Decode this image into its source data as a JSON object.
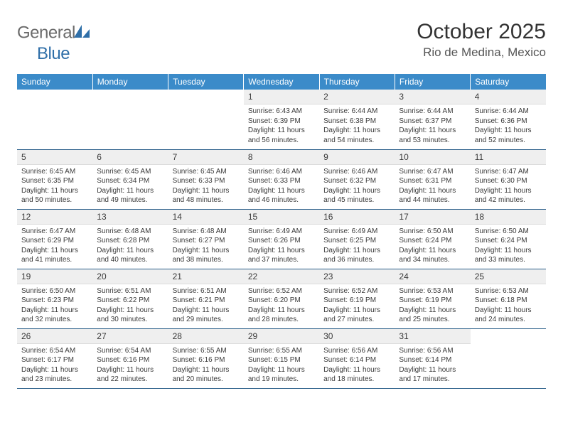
{
  "logo": {
    "word1": "General",
    "word2": "Blue"
  },
  "title": {
    "month": "October 2025",
    "location": "Rio de Medina, Mexico"
  },
  "colors": {
    "header_bg": "#3b8bc9",
    "header_text": "#ffffff",
    "daynum_bg": "#efefef",
    "row_border": "#2b5f8a",
    "logo_gray": "#6b6b6b",
    "logo_blue": "#2f6fa8",
    "body_text": "#3a3a3a",
    "page_bg": "#ffffff"
  },
  "typography": {
    "title_fontsize": 30,
    "location_fontsize": 17,
    "dayhead_fontsize": 12,
    "daynum_fontsize": 12,
    "body_fontsize": 10
  },
  "weekdays": [
    "Sunday",
    "Monday",
    "Tuesday",
    "Wednesday",
    "Thursday",
    "Friday",
    "Saturday"
  ],
  "weeks": [
    [
      {
        "n": "",
        "sr": "",
        "ss": "",
        "dl": ""
      },
      {
        "n": "",
        "sr": "",
        "ss": "",
        "dl": ""
      },
      {
        "n": "",
        "sr": "",
        "ss": "",
        "dl": ""
      },
      {
        "n": "1",
        "sr": "Sunrise: 6:43 AM",
        "ss": "Sunset: 6:39 PM",
        "dl": "Daylight: 11 hours and 56 minutes."
      },
      {
        "n": "2",
        "sr": "Sunrise: 6:44 AM",
        "ss": "Sunset: 6:38 PM",
        "dl": "Daylight: 11 hours and 54 minutes."
      },
      {
        "n": "3",
        "sr": "Sunrise: 6:44 AM",
        "ss": "Sunset: 6:37 PM",
        "dl": "Daylight: 11 hours and 53 minutes."
      },
      {
        "n": "4",
        "sr": "Sunrise: 6:44 AM",
        "ss": "Sunset: 6:36 PM",
        "dl": "Daylight: 11 hours and 52 minutes."
      }
    ],
    [
      {
        "n": "5",
        "sr": "Sunrise: 6:45 AM",
        "ss": "Sunset: 6:35 PM",
        "dl": "Daylight: 11 hours and 50 minutes."
      },
      {
        "n": "6",
        "sr": "Sunrise: 6:45 AM",
        "ss": "Sunset: 6:34 PM",
        "dl": "Daylight: 11 hours and 49 minutes."
      },
      {
        "n": "7",
        "sr": "Sunrise: 6:45 AM",
        "ss": "Sunset: 6:33 PM",
        "dl": "Daylight: 11 hours and 48 minutes."
      },
      {
        "n": "8",
        "sr": "Sunrise: 6:46 AM",
        "ss": "Sunset: 6:33 PM",
        "dl": "Daylight: 11 hours and 46 minutes."
      },
      {
        "n": "9",
        "sr": "Sunrise: 6:46 AM",
        "ss": "Sunset: 6:32 PM",
        "dl": "Daylight: 11 hours and 45 minutes."
      },
      {
        "n": "10",
        "sr": "Sunrise: 6:47 AM",
        "ss": "Sunset: 6:31 PM",
        "dl": "Daylight: 11 hours and 44 minutes."
      },
      {
        "n": "11",
        "sr": "Sunrise: 6:47 AM",
        "ss": "Sunset: 6:30 PM",
        "dl": "Daylight: 11 hours and 42 minutes."
      }
    ],
    [
      {
        "n": "12",
        "sr": "Sunrise: 6:47 AM",
        "ss": "Sunset: 6:29 PM",
        "dl": "Daylight: 11 hours and 41 minutes."
      },
      {
        "n": "13",
        "sr": "Sunrise: 6:48 AM",
        "ss": "Sunset: 6:28 PM",
        "dl": "Daylight: 11 hours and 40 minutes."
      },
      {
        "n": "14",
        "sr": "Sunrise: 6:48 AM",
        "ss": "Sunset: 6:27 PM",
        "dl": "Daylight: 11 hours and 38 minutes."
      },
      {
        "n": "15",
        "sr": "Sunrise: 6:49 AM",
        "ss": "Sunset: 6:26 PM",
        "dl": "Daylight: 11 hours and 37 minutes."
      },
      {
        "n": "16",
        "sr": "Sunrise: 6:49 AM",
        "ss": "Sunset: 6:25 PM",
        "dl": "Daylight: 11 hours and 36 minutes."
      },
      {
        "n": "17",
        "sr": "Sunrise: 6:50 AM",
        "ss": "Sunset: 6:24 PM",
        "dl": "Daylight: 11 hours and 34 minutes."
      },
      {
        "n": "18",
        "sr": "Sunrise: 6:50 AM",
        "ss": "Sunset: 6:24 PM",
        "dl": "Daylight: 11 hours and 33 minutes."
      }
    ],
    [
      {
        "n": "19",
        "sr": "Sunrise: 6:50 AM",
        "ss": "Sunset: 6:23 PM",
        "dl": "Daylight: 11 hours and 32 minutes."
      },
      {
        "n": "20",
        "sr": "Sunrise: 6:51 AM",
        "ss": "Sunset: 6:22 PM",
        "dl": "Daylight: 11 hours and 30 minutes."
      },
      {
        "n": "21",
        "sr": "Sunrise: 6:51 AM",
        "ss": "Sunset: 6:21 PM",
        "dl": "Daylight: 11 hours and 29 minutes."
      },
      {
        "n": "22",
        "sr": "Sunrise: 6:52 AM",
        "ss": "Sunset: 6:20 PM",
        "dl": "Daylight: 11 hours and 28 minutes."
      },
      {
        "n": "23",
        "sr": "Sunrise: 6:52 AM",
        "ss": "Sunset: 6:19 PM",
        "dl": "Daylight: 11 hours and 27 minutes."
      },
      {
        "n": "24",
        "sr": "Sunrise: 6:53 AM",
        "ss": "Sunset: 6:19 PM",
        "dl": "Daylight: 11 hours and 25 minutes."
      },
      {
        "n": "25",
        "sr": "Sunrise: 6:53 AM",
        "ss": "Sunset: 6:18 PM",
        "dl": "Daylight: 11 hours and 24 minutes."
      }
    ],
    [
      {
        "n": "26",
        "sr": "Sunrise: 6:54 AM",
        "ss": "Sunset: 6:17 PM",
        "dl": "Daylight: 11 hours and 23 minutes."
      },
      {
        "n": "27",
        "sr": "Sunrise: 6:54 AM",
        "ss": "Sunset: 6:16 PM",
        "dl": "Daylight: 11 hours and 22 minutes."
      },
      {
        "n": "28",
        "sr": "Sunrise: 6:55 AM",
        "ss": "Sunset: 6:16 PM",
        "dl": "Daylight: 11 hours and 20 minutes."
      },
      {
        "n": "29",
        "sr": "Sunrise: 6:55 AM",
        "ss": "Sunset: 6:15 PM",
        "dl": "Daylight: 11 hours and 19 minutes."
      },
      {
        "n": "30",
        "sr": "Sunrise: 6:56 AM",
        "ss": "Sunset: 6:14 PM",
        "dl": "Daylight: 11 hours and 18 minutes."
      },
      {
        "n": "31",
        "sr": "Sunrise: 6:56 AM",
        "ss": "Sunset: 6:14 PM",
        "dl": "Daylight: 11 hours and 17 minutes."
      },
      {
        "n": "",
        "sr": "",
        "ss": "",
        "dl": ""
      }
    ]
  ]
}
